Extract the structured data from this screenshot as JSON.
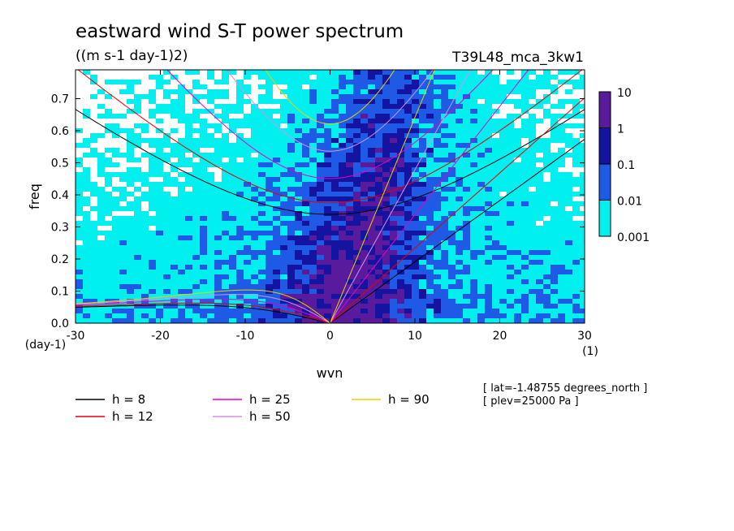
{
  "chart_data": {
    "type": "heatmap",
    "title": "eastward wind S-T power spectrum",
    "subtitle": "((m s-1 day-1)2)",
    "run_label": "T39L48_mca_3kw1",
    "xlabel": "wvn",
    "ylabel": "freq",
    "x_unit": "(1)",
    "y_unit": "(day-1)",
    "xlim": [
      -30,
      30
    ],
    "ylim": [
      0,
      0.79
    ],
    "x_ticks": [
      "-30",
      "-20",
      "-10",
      "0",
      "10",
      "20",
      "30"
    ],
    "x_tick_values": [
      -30,
      -20,
      -10,
      0,
      10,
      20,
      30
    ],
    "y_ticks": [
      "0.0",
      "0.1",
      "0.2",
      "0.3",
      "0.4",
      "0.5",
      "0.6",
      "0.7"
    ],
    "y_tick_values": [
      0,
      0.1,
      0.2,
      0.3,
      0.4,
      0.5,
      0.6,
      0.7
    ],
    "log_scale_colorbar": true,
    "colorbar": {
      "labels": [
        "10",
        "1",
        "0.1",
        "0.01",
        "0.001"
      ],
      "levels": [
        10,
        1,
        0.1,
        0.01,
        0.001
      ],
      "colors": [
        "#5a1a9e",
        "#1414a0",
        "#1e5ae6",
        "#00f0f0"
      ]
    },
    "dispersion_curves": [
      {
        "label": "h =  8",
        "h": 8,
        "color": "#000000"
      },
      {
        "label": "h = 12",
        "h": 12,
        "color": "#e60000"
      },
      {
        "label": "h = 25",
        "h": 25,
        "color": "#e600c8"
      },
      {
        "label": "h = 50",
        "h": 50,
        "color": "#d291e6"
      },
      {
        "label": "h = 90",
        "h": 90,
        "color": "#e6d200"
      }
    ],
    "annotations": [
      "[ lat=-1.48755 degrees_north ]",
      "[ plev=25000 Pa ]"
    ]
  }
}
